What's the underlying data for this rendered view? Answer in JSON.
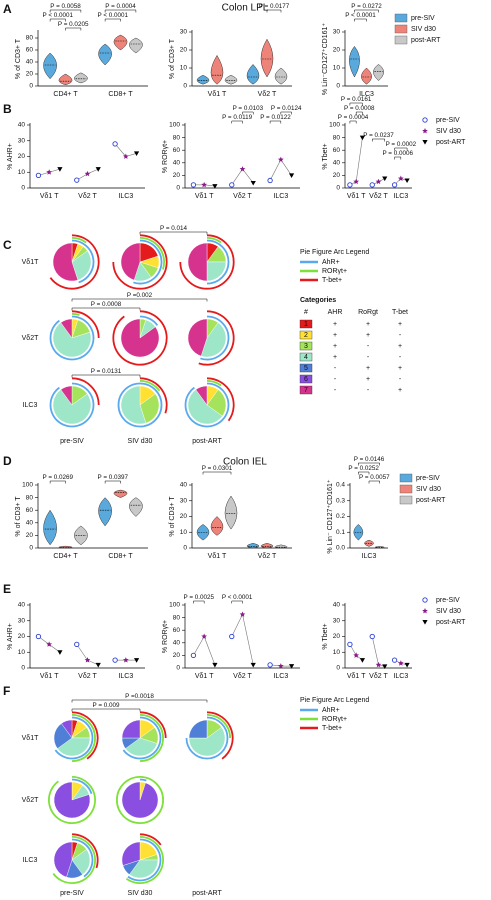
{
  "panel_labels": [
    "A",
    "B",
    "C",
    "D",
    "E",
    "F"
  ],
  "section_titles": [
    "Colon LPL",
    "Colon IEL"
  ],
  "chart_data": [
    {
      "type": "violin",
      "ylabel": "% of CD3+ T",
      "categories": [
        "CD4+ T",
        "CD8+ T"
      ],
      "ylim": [
        0,
        90
      ],
      "yticks": [
        0,
        20,
        40,
        60,
        80
      ],
      "series": [
        {
          "color": "#5aa9dd",
          "values": [
            35,
            55
          ],
          "low": [
            12,
            35
          ],
          "high": [
            55,
            70
          ]
        },
        {
          "color": "#ee8479",
          "values": [
            8,
            75
          ],
          "low": [
            2,
            60
          ],
          "high": [
            20,
            85
          ]
        },
        {
          "color": "#c8c8c8",
          "values": [
            12,
            70
          ],
          "low": [
            5,
            55
          ],
          "high": [
            22,
            80
          ]
        }
      ],
      "annotations": [
        "P = 0.0058",
        "P < 0.0001",
        "P = 0.0205",
        "P = 0.0004",
        "P < 0.0001"
      ]
    },
    {
      "type": "violin",
      "ylabel": "% of CD3+ T",
      "categories": [
        "Vδ1 T",
        "Vδ2 T"
      ],
      "ylim": [
        0,
        30
      ],
      "yticks": [
        0,
        10,
        20,
        30
      ],
      "series": [
        {
          "color": "#5aa9dd",
          "values": [
            3,
            5
          ],
          "low": [
            1,
            1
          ],
          "high": [
            6,
            12
          ]
        },
        {
          "color": "#ee8479",
          "values": [
            6,
            15
          ],
          "low": [
            1,
            5
          ],
          "high": [
            17,
            26
          ]
        },
        {
          "color": "#c8c8c8",
          "values": [
            3,
            5
          ],
          "low": [
            1,
            1
          ],
          "high": [
            6,
            10
          ]
        }
      ],
      "annotations": [
        "P = 0.0177"
      ]
    },
    {
      "type": "violin",
      "ylabel": "% Lin⁻CD127⁺CD161⁺",
      "categories": [
        "ILC3"
      ],
      "ylim": [
        0,
        30
      ],
      "yticks": [
        0,
        10,
        20,
        30
      ],
      "legend": "upper right",
      "series": [
        {
          "name": "pre-SIV",
          "color": "#5aa9dd",
          "values": [
            15
          ],
          "low": [
            5
          ],
          "high": [
            22
          ]
        },
        {
          "name": "SIV d30",
          "color": "#ee8479",
          "values": [
            5
          ],
          "low": [
            1
          ],
          "high": [
            10
          ]
        },
        {
          "name": "post-ART",
          "color": "#c8c8c8",
          "values": [
            8
          ],
          "low": [
            3
          ],
          "high": [
            12
          ]
        }
      ],
      "annotations": [
        "P = 0.0272",
        "P < 0.0001"
      ]
    },
    {
      "type": "paired",
      "ylabel": "% AHR+",
      "categories": [
        "Vδ1 T",
        "Vδ2 T",
        "ILC3"
      ],
      "ylim": [
        0,
        40
      ],
      "yticks": [
        0,
        10,
        20,
        30,
        40
      ],
      "series": [
        {
          "color": "#2b3fd6",
          "marker": "circle",
          "values": [
            8,
            5,
            28
          ]
        },
        {
          "color": "#8b1a8b",
          "marker": "star",
          "values": [
            10,
            9,
            20
          ]
        },
        {
          "color": "#000000",
          "marker": "triangle",
          "values": [
            12,
            12,
            22
          ]
        }
      ],
      "annotations": []
    },
    {
      "type": "paired",
      "ylabel": "% RORγt+",
      "categories": [
        "Vδ1 T",
        "Vδ2 T",
        "ILC3"
      ],
      "ylim": [
        0,
        100
      ],
      "yticks": [
        0,
        20,
        40,
        60,
        80,
        100
      ],
      "series": [
        {
          "color": "#2b3fd6",
          "marker": "circle",
          "values": [
            5,
            5,
            12
          ]
        },
        {
          "color": "#8b1a8b",
          "marker": "star",
          "values": [
            5,
            30,
            45
          ]
        },
        {
          "color": "#000000",
          "marker": "triangle",
          "values": [
            3,
            8,
            20
          ]
        }
      ],
      "annotations": [
        "P = 0.0103",
        "P = 0.0124",
        "P = 0.0119",
        "P = 0.0122"
      ]
    },
    {
      "type": "paired",
      "ylabel": "% Tbet+",
      "categories": [
        "Vδ1 T",
        "Vδ2 T",
        "ILC3"
      ],
      "ylim": [
        0,
        100
      ],
      "yticks": [
        0,
        20,
        40,
        60,
        80,
        100
      ],
      "legend": "upper right",
      "series": [
        {
          "name": "pre-SIV",
          "color": "#2b3fd6",
          "marker": "circle",
          "values": [
            5,
            5,
            5
          ]
        },
        {
          "name": "SIV d30",
          "color": "#8b1a8b",
          "marker": "star",
          "values": [
            10,
            10,
            15
          ]
        },
        {
          "name": "post-ART",
          "color": "#000000",
          "marker": "triangle",
          "values": [
            80,
            15,
            12
          ]
        }
      ],
      "annotations": [
        "P = 0.0161",
        "P = 0.0008",
        "P = 0.0004",
        "P = 0.0237",
        "P = 0.0006",
        "P = 0.0002"
      ]
    },
    {
      "type": "pie-grid",
      "rows": [
        "Vδ1T",
        "Vδ2T",
        "ILC3"
      ],
      "columns": [
        "pre-SIV",
        "SIV d30",
        "post-ART"
      ],
      "colors": [
        "#e41a1c",
        "#ffe033",
        "#a6e35c",
        "#9ee6c8",
        "#4f7fd6",
        "#8a4fe0",
        "#d6338f"
      ],
      "values": [
        [
          [
            5,
            5,
            5,
            30,
            0,
            0,
            55
          ],
          [
            20,
            10,
            10,
            15,
            0,
            0,
            45
          ],
          [
            10,
            0,
            15,
            25,
            0,
            0,
            50
          ]
        ],
        [
          [
            0,
            5,
            15,
            70,
            0,
            0,
            10
          ],
          [
            0,
            0,
            5,
            10,
            0,
            0,
            85
          ],
          [
            0,
            0,
            10,
            45,
            0,
            0,
            45
          ]
        ],
        [
          [
            0,
            0,
            15,
            75,
            0,
            0,
            10
          ],
          [
            0,
            15,
            30,
            55,
            0,
            0,
            0
          ],
          [
            0,
            10,
            25,
            55,
            0,
            0,
            10
          ]
        ]
      ],
      "annotations": [
        "P = 0.014",
        "P =0.002",
        "P = 0.0008",
        "P = 0.0131"
      ],
      "arc_legend": {
        "title": "Pie Figure Arc Legend",
        "items": [
          {
            "name": "AhR+",
            "color": "#5aa9ee"
          },
          {
            "name": "RORγt+",
            "color": "#7ee03a"
          },
          {
            "name": "T-bet+",
            "color": "#e41a1c"
          }
        ]
      },
      "table": {
        "title": "Categories",
        "header": [
          "#",
          "AHR",
          "RoRgt",
          "T-bet"
        ],
        "rows": [
          [
            "1",
            "+",
            "+",
            "+"
          ],
          [
            "2",
            "+",
            "+",
            "-"
          ],
          [
            "3",
            "+",
            "-",
            "+"
          ],
          [
            "4",
            "+",
            "-",
            "-"
          ],
          [
            "5",
            "-",
            "+",
            "+"
          ],
          [
            "6",
            "-",
            "+",
            "-"
          ],
          [
            "7",
            "-",
            "-",
            "+"
          ]
        ]
      }
    },
    {
      "type": "violin",
      "ylabel": "% of CD3+ T",
      "categories": [
        "CD4+ T",
        "CD8+ T"
      ],
      "ylim": [
        0,
        100
      ],
      "yticks": [
        0,
        20,
        40,
        60,
        80,
        100
      ],
      "series": [
        {
          "color": "#5aa9dd",
          "values": [
            30,
            60
          ],
          "low": [
            5,
            35
          ],
          "high": [
            60,
            80
          ]
        },
        {
          "color": "#ee8479",
          "values": [
            1,
            88
          ],
          "low": [
            0,
            80
          ],
          "high": [
            3,
            92
          ]
        },
        {
          "color": "#c8c8c8",
          "values": [
            20,
            68
          ],
          "low": [
            5,
            50
          ],
          "high": [
            35,
            80
          ]
        }
      ],
      "annotations": [
        "P = 0.0269",
        "P = 0.0397"
      ]
    },
    {
      "type": "violin",
      "ylabel": "% of CD3+ T",
      "categories": [
        "Vδ1 T",
        "Vδ2 T"
      ],
      "ylim": [
        0,
        40
      ],
      "yticks": [
        0,
        10,
        20,
        30,
        40
      ],
      "series": [
        {
          "color": "#5aa9dd",
          "values": [
            10,
            1
          ],
          "low": [
            5,
            0
          ],
          "high": [
            15,
            3
          ]
        },
        {
          "color": "#ee8479",
          "values": [
            13,
            1
          ],
          "low": [
            8,
            0
          ],
          "high": [
            20,
            3
          ]
        },
        {
          "color": "#c8c8c8",
          "values": [
            22,
            0.5
          ],
          "low": [
            12,
            0
          ],
          "high": [
            33,
            2
          ]
        }
      ],
      "annotations": [
        "P = 0.0301"
      ]
    },
    {
      "type": "violin",
      "ylabel": "% Lin⁻ CD127⁺CD161⁺",
      "categories": [
        "ILC3"
      ],
      "ylim": [
        0,
        0.4
      ],
      "yticks": [
        {
          "value": 0,
          "label": "0.0"
        },
        0.1,
        0.2,
        0.3,
        0.4
      ],
      "legend": "upper right",
      "series": [
        {
          "name": "pre-SIV",
          "color": "#5aa9dd",
          "values": [
            0.1
          ],
          "low": [
            0.05
          ],
          "high": [
            0.15
          ]
        },
        {
          "name": "SIV d30",
          "color": "#ee8479",
          "values": [
            0.03
          ],
          "low": [
            0.01
          ],
          "high": [
            0.05
          ]
        },
        {
          "name": "post-ART",
          "color": "#c8c8c8",
          "values": [
            0.005
          ],
          "low": [
            0
          ],
          "high": [
            0.01
          ]
        }
      ],
      "annotations": [
        "P = 0.0146",
        "P = 0.0252",
        "P = 0.0057"
      ]
    },
    {
      "type": "paired",
      "ylabel": "% AHR+",
      "categories": [
        "Vδ1 T",
        "Vδ2 T",
        "ILC3"
      ],
      "ylim": [
        0,
        40
      ],
      "yticks": [
        0,
        10,
        20,
        30,
        40
      ],
      "series": [
        {
          "color": "#2b3fd6",
          "marker": "circle",
          "values": [
            20,
            15,
            5
          ]
        },
        {
          "color": "#8b1a8b",
          "marker": "star",
          "values": [
            15,
            5,
            5
          ]
        },
        {
          "color": "#000000",
          "marker": "triangle",
          "values": [
            10,
            2,
            5
          ]
        }
      ],
      "annotations": []
    },
    {
      "type": "paired",
      "ylabel": "% RORγt+",
      "categories": [
        "Vδ1 T",
        "Vδ2 T",
        "ILC3"
      ],
      "ylim": [
        0,
        100
      ],
      "yticks": [
        0,
        20,
        40,
        60,
        80,
        100
      ],
      "series": [
        {
          "color": "#2b3fd6",
          "marker": "circle",
          "values": [
            20,
            50,
            5
          ]
        },
        {
          "color": "#8b1a8b",
          "marker": "star",
          "values": [
            50,
            85,
            3
          ]
        },
        {
          "color": "#000000",
          "marker": "triangle",
          "values": [
            5,
            5,
            3
          ]
        }
      ],
      "annotations": [
        "P = 0.0025",
        "P < 0.0001"
      ]
    },
    {
      "type": "paired",
      "ylabel": "% Tbet+",
      "categories": [
        "Vδ1 T",
        "Vδ2 T",
        "ILC3"
      ],
      "ylim": [
        0,
        40
      ],
      "yticks": [
        0,
        10,
        20,
        30,
        40
      ],
      "legend": "upper right",
      "series": [
        {
          "name": "pre-SIV",
          "color": "#2b3fd6",
          "marker": "circle",
          "values": [
            15,
            20,
            5
          ]
        },
        {
          "name": "SIV d30",
          "color": "#8b1a8b",
          "marker": "star",
          "values": [
            8,
            2,
            3
          ]
        },
        {
          "name": "post-ART",
          "color": "#000000",
          "marker": "triangle",
          "values": [
            5,
            1,
            2
          ]
        }
      ],
      "annotations": []
    },
    {
      "type": "pie-grid",
      "rows": [
        "Vδ1T",
        "Vδ2T",
        "ILC3"
      ],
      "columns": [
        "pre-SIV",
        "SIV d30",
        "post-ART"
      ],
      "colors": [
        "#e41a1c",
        "#ffe033",
        "#a6e35c",
        "#9ee6c8",
        "#4f7fd6",
        "#8a4fe0",
        "#d6338f"
      ],
      "values": [
        [
          [
            5,
            10,
            10,
            40,
            25,
            10,
            0
          ],
          [
            0,
            15,
            15,
            35,
            10,
            25,
            0
          ],
          [
            0,
            0,
            15,
            60,
            25,
            0,
            0
          ]
        ],
        [
          [
            0,
            10,
            0,
            10,
            0,
            80,
            0
          ],
          [
            0,
            5,
            0,
            0,
            0,
            95,
            0
          ],
          null
        ],
        [
          [
            5,
            0,
            10,
            25,
            15,
            45,
            0
          ],
          [
            0,
            20,
            5,
            35,
            10,
            30,
            0
          ],
          null
        ]
      ],
      "annotations": [
        "P =0.0018",
        "P = 0.009"
      ],
      "arc_legend": {
        "title": "Pie Figure Arc Legend",
        "items": [
          {
            "name": "AhR+",
            "color": "#5aa9ee"
          },
          {
            "name": "RORγt+",
            "color": "#7ee03a"
          },
          {
            "name": "T-bet+",
            "color": "#e41a1c"
          }
        ]
      }
    }
  ]
}
